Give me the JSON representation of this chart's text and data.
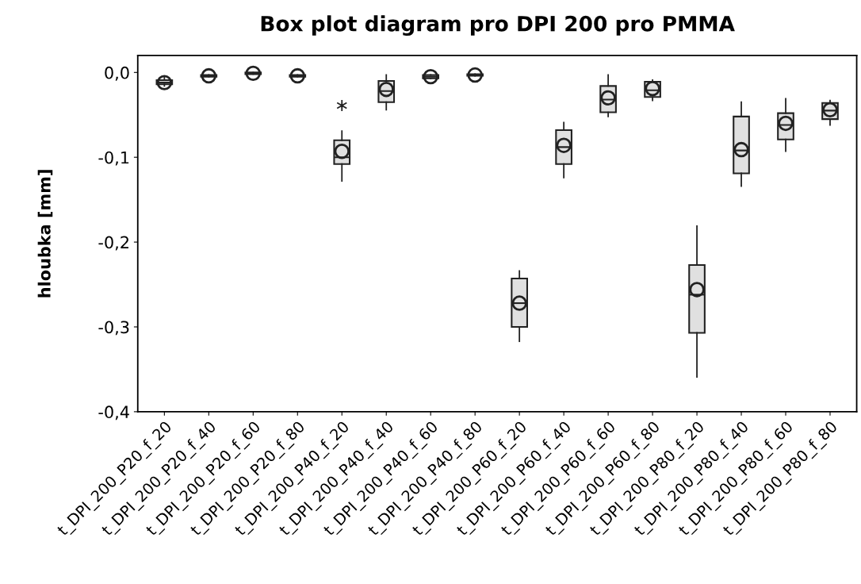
{
  "chart_data": {
    "type": "box",
    "title": "Box plot diagram pro DPI 200 pro PMMA",
    "ylabel": "hloubka [mm]",
    "categories": [
      "t_DPI_200_P20_f_20",
      "t_DPI_200_P20_f_40",
      "t_DPI_200_P20_f_60",
      "t_DPI_200_P20_f_80",
      "t_DPI_200_P40_f_20",
      "t_DPI_200_P40_f_40",
      "t_DPI_200_P40_f_60",
      "t_DPI_200_P40_f_80",
      "t_DPI_200_P60_f_20",
      "t_DPI_200_P60_f_40",
      "t_DPI_200_P60_f_60",
      "t_DPI_200_P60_f_80",
      "t_DPI_200_P80_f_20",
      "t_DPI_200_P80_f_40",
      "t_DPI_200_P80_f_60",
      "t_DPI_200_P80_f_80"
    ],
    "boxes": [
      {
        "low": -0.016,
        "q1": -0.014,
        "median": -0.012,
        "q3": -0.009,
        "high": -0.006,
        "mean": -0.012
      },
      {
        "low": -0.005,
        "q1": -0.005,
        "median": -0.004,
        "q3": -0.003,
        "high": -0.003,
        "mean": -0.004
      },
      {
        "low": -0.002,
        "q1": -0.002,
        "median": -0.001,
        "q3": 0.0,
        "high": 0.0,
        "mean": -0.001
      },
      {
        "low": -0.005,
        "q1": -0.005,
        "median": -0.004,
        "q3": -0.003,
        "high": -0.003,
        "mean": -0.004
      },
      {
        "low": -0.128,
        "q1": -0.108,
        "median": -0.1,
        "q3": -0.08,
        "high": -0.069,
        "mean": -0.093,
        "outliers": [
          -0.039
        ]
      },
      {
        "low": -0.044,
        "q1": -0.035,
        "median": -0.022,
        "q3": -0.01,
        "high": -0.003,
        "mean": -0.02
      },
      {
        "low": -0.007,
        "q1": -0.007,
        "median": -0.005,
        "q3": -0.003,
        "high": -0.003,
        "mean": -0.005
      },
      {
        "low": -0.004,
        "q1": -0.004,
        "median": -0.003,
        "q3": -0.002,
        "high": -0.002,
        "mean": -0.003
      },
      {
        "low": -0.317,
        "q1": -0.3,
        "median": -0.272,
        "q3": -0.243,
        "high": -0.234,
        "mean": -0.272
      },
      {
        "low": -0.124,
        "q1": -0.108,
        "median": -0.088,
        "q3": -0.068,
        "high": -0.059,
        "mean": -0.086
      },
      {
        "low": -0.052,
        "q1": -0.047,
        "median": -0.032,
        "q3": -0.016,
        "high": -0.003,
        "mean": -0.03
      },
      {
        "low": -0.033,
        "q1": -0.029,
        "median": -0.021,
        "q3": -0.011,
        "high": -0.009,
        "mean": -0.019
      },
      {
        "low": -0.359,
        "q1": -0.307,
        "median": -0.262,
        "q3": -0.227,
        "high": -0.181,
        "mean": -0.256
      },
      {
        "low": -0.134,
        "q1": -0.119,
        "median": -0.092,
        "q3": -0.052,
        "high": -0.035,
        "mean": -0.091
      },
      {
        "low": -0.093,
        "q1": -0.079,
        "median": -0.062,
        "q3": -0.048,
        "high": -0.031,
        "mean": -0.06
      },
      {
        "low": -0.062,
        "q1": -0.055,
        "median": -0.045,
        "q3": -0.036,
        "high": -0.033,
        "mean": -0.044
      }
    ],
    "color": "#e0e0e0",
    "ylim": [
      -0.4,
      0.02
    ],
    "yticks": [
      {
        "value": 0.0,
        "label": "0,0"
      },
      {
        "value": -0.1,
        "label": "-0,1"
      },
      {
        "value": -0.2,
        "label": "-0,2"
      },
      {
        "value": -0.3,
        "label": "-0,3"
      },
      {
        "value": -0.4,
        "label": "-0,4"
      }
    ]
  }
}
